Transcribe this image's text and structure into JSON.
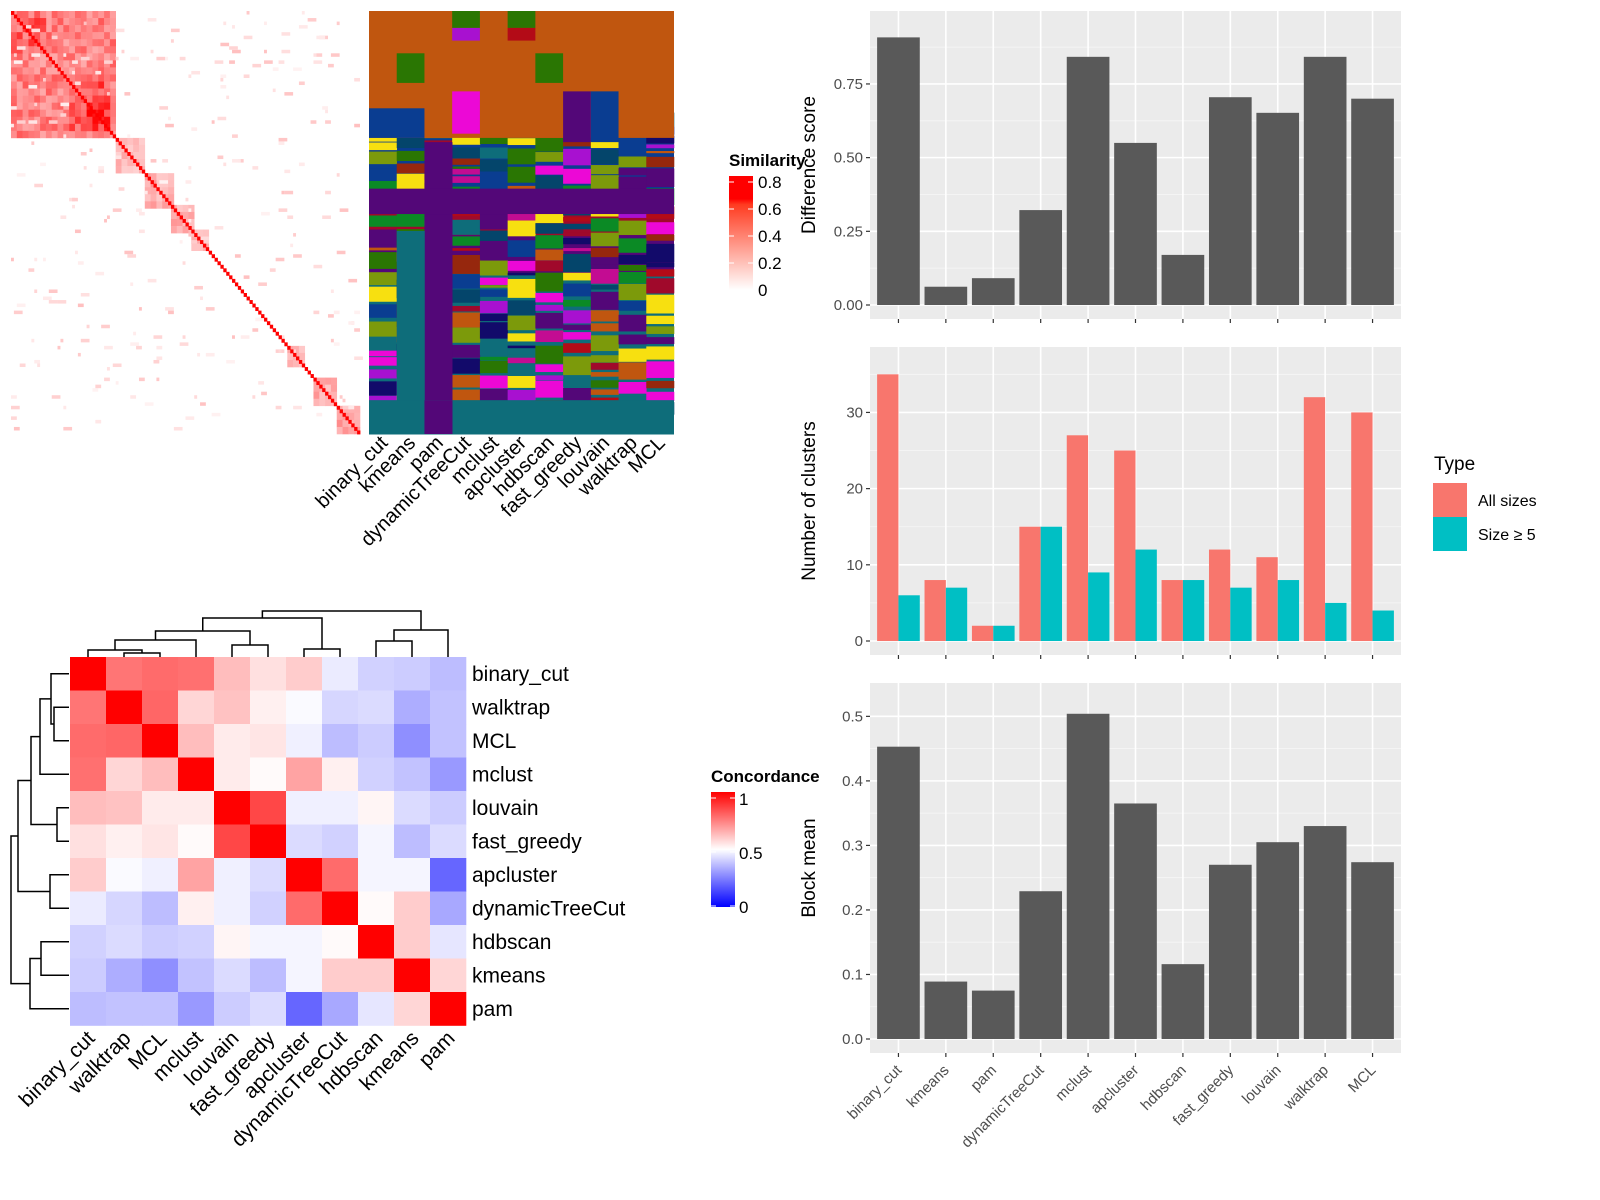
{
  "methods_partition_order": [
    "binary_cut",
    "kmeans",
    "pam",
    "dynamicTreeCut",
    "mclust",
    "apcluster",
    "hdbscan",
    "fast_greedy",
    "louvain",
    "walktrap",
    "MCL"
  ],
  "chart_data": [
    {
      "id": "similarity-heatmap",
      "type": "heatmap",
      "title": "",
      "legend_title": "Similarity",
      "legend_ticks": [
        "0.8",
        "0.6",
        "0.4",
        "0.2",
        "0"
      ],
      "color_range": {
        "low": "#ffffff",
        "high": "#ff0000"
      },
      "description": "Sorted term similarity matrix with block-diagonal structure; strong top-left block, diagonal blocks down to bottom-right"
    },
    {
      "id": "partition-heatmap",
      "type": "heatmap",
      "categories": [
        "binary_cut",
        "kmeans",
        "pam",
        "dynamicTreeCut",
        "mclust",
        "apcluster",
        "hdbscan",
        "fast_greedy",
        "louvain",
        "walktrap",
        "MCL"
      ],
      "description": "Cluster assignment per method (columns) for each term (rows), colored by cluster label"
    },
    {
      "id": "concordance-heatmap",
      "type": "heatmap",
      "legend_title": "Concordance",
      "legend_ticks": [
        "1",
        "0.5",
        "0"
      ],
      "color_range": {
        "low": "#0000ff",
        "mid": "#ffffff",
        "high": "#ff0000"
      },
      "row_labels": [
        "binary_cut",
        "walktrap",
        "MCL",
        "mclust",
        "louvain",
        "fast_greedy",
        "apcluster",
        "dynamicTreeCut",
        "hdbscan",
        "kmeans",
        "pam"
      ],
      "col_labels": [
        "binary_cut",
        "walktrap",
        "MCL",
        "mclust",
        "louvain",
        "fast_greedy",
        "apcluster",
        "dynamicTreeCut",
        "hdbscan",
        "kmeans",
        "pam"
      ],
      "values": [
        [
          1.0,
          0.77,
          0.79,
          0.78,
          0.63,
          0.56,
          0.6,
          0.46,
          0.41,
          0.4,
          0.37
        ],
        [
          0.77,
          1.0,
          0.8,
          0.58,
          0.62,
          0.53,
          0.49,
          0.42,
          0.43,
          0.34,
          0.38
        ],
        [
          0.79,
          0.8,
          1.0,
          0.63,
          0.54,
          0.55,
          0.47,
          0.37,
          0.4,
          0.28,
          0.38
        ],
        [
          0.78,
          0.58,
          0.63,
          1.0,
          0.54,
          0.51,
          0.68,
          0.53,
          0.41,
          0.38,
          0.3
        ],
        [
          0.63,
          0.62,
          0.54,
          0.54,
          1.0,
          0.86,
          0.47,
          0.47,
          0.52,
          0.43,
          0.4
        ],
        [
          0.56,
          0.53,
          0.55,
          0.51,
          0.86,
          1.0,
          0.43,
          0.41,
          0.48,
          0.37,
          0.43
        ],
        [
          0.6,
          0.49,
          0.47,
          0.68,
          0.47,
          0.43,
          1.0,
          0.79,
          0.48,
          0.48,
          0.2
        ],
        [
          0.46,
          0.42,
          0.37,
          0.53,
          0.47,
          0.41,
          0.79,
          1.0,
          0.51,
          0.6,
          0.33
        ],
        [
          0.41,
          0.43,
          0.4,
          0.41,
          0.52,
          0.48,
          0.48,
          0.51,
          1.0,
          0.6,
          0.45
        ],
        [
          0.4,
          0.34,
          0.28,
          0.38,
          0.43,
          0.37,
          0.48,
          0.6,
          0.6,
          1.0,
          0.58
        ],
        [
          0.37,
          0.38,
          0.38,
          0.3,
          0.4,
          0.43,
          0.2,
          0.33,
          0.45,
          0.58,
          1.0
        ]
      ],
      "dendrogram": "((((binary_cut,(walktrap,MCL)),mclust),(louvain,fast_greedy)),(apcluster,dynamicTreeCut)),((hdbscan,kmeans),pam)"
    },
    {
      "id": "difference-score-chart",
      "type": "bar",
      "categories": [
        "binary_cut",
        "kmeans",
        "pam",
        "dynamicTreeCut",
        "mclust",
        "apcluster",
        "hdbscan",
        "fast_greedy",
        "louvain",
        "walktrap",
        "MCL"
      ],
      "values": [
        0.908,
        0.062,
        0.091,
        0.322,
        0.842,
        0.55,
        0.17,
        0.705,
        0.652,
        0.842,
        0.7
      ],
      "xlabel": "",
      "ylabel": "Difference score",
      "yticks": [
        0.0,
        0.25,
        0.5,
        0.75
      ],
      "ytick_labels": [
        "0.00",
        "0.25",
        "0.50",
        "0.75"
      ],
      "ylim": [
        0,
        0.95
      ],
      "show_x_tick_labels": false,
      "bar_color": "#595959",
      "grid": true
    },
    {
      "id": "number-of-clusters-chart",
      "type": "bar",
      "categories": [
        "binary_cut",
        "kmeans",
        "pam",
        "dynamicTreeCut",
        "mclust",
        "apcluster",
        "hdbscan",
        "fast_greedy",
        "louvain",
        "walktrap",
        "MCL"
      ],
      "series": [
        {
          "name": "All sizes",
          "color": "#F8766D",
          "values": [
            35,
            8,
            2,
            15,
            27,
            25,
            8,
            12,
            11,
            32,
            30
          ]
        },
        {
          "name": "Size ≥ 5",
          "color": "#00BFC4",
          "values": [
            6,
            7,
            2,
            15,
            9,
            12,
            8,
            7,
            8,
            5,
            4
          ]
        }
      ],
      "xlabel": "",
      "ylabel": "Number of clusters",
      "yticks": [
        0,
        10,
        20,
        30
      ],
      "ytick_labels": [
        "0",
        "10",
        "20",
        "30"
      ],
      "ylim": [
        0,
        36.75
      ],
      "legend_title": "Type",
      "legend_position": "right",
      "show_x_tick_labels": false,
      "grid": true
    },
    {
      "id": "block-mean-chart",
      "type": "bar",
      "categories": [
        "binary_cut",
        "kmeans",
        "pam",
        "dynamicTreeCut",
        "mclust",
        "apcluster",
        "hdbscan",
        "fast_greedy",
        "louvain",
        "walktrap",
        "MCL"
      ],
      "values": [
        0.453,
        0.089,
        0.075,
        0.229,
        0.504,
        0.365,
        0.116,
        0.27,
        0.305,
        0.33,
        0.274
      ],
      "xlabel": "",
      "ylabel": "Block mean",
      "yticks": [
        0.0,
        0.1,
        0.2,
        0.3,
        0.4,
        0.5
      ],
      "ytick_labels": [
        "0.0",
        "0.1",
        "0.2",
        "0.3",
        "0.4",
        "0.5"
      ],
      "ylim": [
        0,
        0.53
      ],
      "show_x_tick_labels": true,
      "bar_color": "#595959",
      "grid": true
    }
  ]
}
